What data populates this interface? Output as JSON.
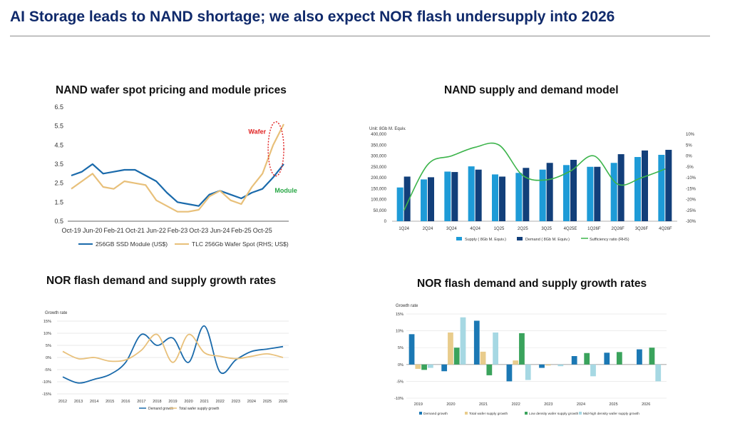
{
  "slide_title": "AI Storage leads to NAND shortage; we also expect NOR flash undersupply into 2026",
  "chart_data": [
    {
      "id": "nand_pricing",
      "type": "line",
      "title": "NAND wafer spot pricing and module prices",
      "ylim": [
        0.5,
        6.5
      ],
      "yticks": [
        "0.5",
        "1.5",
        "2.5",
        "3.5",
        "4.5",
        "5.5",
        "6.5"
      ],
      "xticks": [
        "Oct-19",
        "Jun-20",
        "Feb-21",
        "Oct-21",
        "Jun-22",
        "Feb-23",
        "Oct-23",
        "Jun-24",
        "Feb-25",
        "Oct-25"
      ],
      "x": [
        "Oct-19",
        "Feb-20",
        "Jun-20",
        "Oct-20",
        "Feb-21",
        "Jun-21",
        "Oct-21",
        "Feb-22",
        "Jun-22",
        "Oct-22",
        "Feb-23",
        "Jun-23",
        "Oct-23",
        "Feb-24",
        "Jun-24",
        "Oct-24",
        "Feb-25",
        "Jun-25",
        "Aug-25",
        "Oct-25",
        "Nov-25"
      ],
      "series": [
        {
          "name": "256GB SSD Module (US$)",
          "color": "#1a6aab",
          "values": [
            2.9,
            3.1,
            3.5,
            3.0,
            3.1,
            3.2,
            3.2,
            2.9,
            2.6,
            2.0,
            1.5,
            1.4,
            1.3,
            1.9,
            2.1,
            1.9,
            1.7,
            2.0,
            2.2,
            2.8,
            3.5
          ]
        },
        {
          "name": "TLC 256Gb Wafer Spot (RHS; US$)",
          "color": "#e8c07a",
          "values": [
            2.2,
            2.6,
            3.0,
            2.3,
            2.2,
            2.6,
            2.5,
            2.4,
            1.6,
            1.3,
            1.0,
            1.0,
            1.1,
            1.8,
            2.1,
            1.6,
            1.4,
            2.3,
            3.0,
            4.5,
            5.6
          ]
        }
      ],
      "annotations": [
        {
          "text": "Wafer",
          "color": "#e02020"
        },
        {
          "text": "Module",
          "color": "#28a745"
        }
      ]
    },
    {
      "id": "nand_supply_demand",
      "type": "bar",
      "title": "NAND supply and demand model",
      "unit_label": "Unit: 8Gb M. Equiv.",
      "ylim": [
        0,
        400000
      ],
      "yticks": [
        "0",
        "50,000",
        "100,000",
        "150,000",
        "200,000",
        "250,000",
        "300,000",
        "350,000",
        "400,000"
      ],
      "y2lim": [
        -30,
        10
      ],
      "y2ticks": [
        "10%",
        "5%",
        "0%",
        "-5%",
        "-10%",
        "-15%",
        "-20%",
        "-25%",
        "-30%"
      ],
      "categories": [
        "1Q24",
        "2Q24",
        "3Q24",
        "4Q24",
        "1Q25",
        "2Q25",
        "3Q25",
        "4Q25E",
        "1Q26F",
        "2Q26F",
        "3Q26F",
        "4Q26F"
      ],
      "series": [
        {
          "name": "Supply ( 8Gb M. Equiv.)",
          "color": "#1e9bd7",
          "values": [
            155000,
            192000,
            228000,
            252000,
            215000,
            222000,
            237000,
            258000,
            250000,
            268000,
            295000,
            305000
          ]
        },
        {
          "name": "Demand ( 8Gb M. Equiv.)",
          "color": "#123f7a",
          "values": [
            205000,
            202000,
            226000,
            237000,
            205000,
            245000,
            268000,
            282000,
            250000,
            308000,
            325000,
            328000
          ]
        },
        {
          "name": "Sufficiency ratio (RHS)",
          "color": "#3cb44b",
          "axis": "right",
          "values": [
            -25,
            -4,
            0,
            4,
            5,
            -9,
            -11,
            -7,
            0,
            -13,
            -10,
            -6
          ]
        }
      ]
    },
    {
      "id": "nor_growth_line",
      "type": "line",
      "title": "NOR flash demand and supply growth rates",
      "axis_title": "Growth rate",
      "ylim": [
        -15,
        15
      ],
      "yticks": [
        "15%",
        "10%",
        "5%",
        "0%",
        "-5%",
        "-10%",
        "-15%"
      ],
      "categories": [
        "2012",
        "2013",
        "2014",
        "2015",
        "2016",
        "2017",
        "2018",
        "2019",
        "2020",
        "2021",
        "2022",
        "2023",
        "2024",
        "2025",
        "2026"
      ],
      "series": [
        {
          "name": "Demand growth",
          "color": "#1a6aab",
          "values": [
            -8,
            -10.5,
            -9,
            -7,
            -2,
            9.5,
            5,
            8,
            -2,
            13,
            -6,
            -1,
            2.5,
            3.5,
            4.5
          ]
        },
        {
          "name": "Total wafer supply growth",
          "color": "#e8c07a",
          "values": [
            2.5,
            -0.5,
            0,
            -1.5,
            -1,
            3,
            9.5,
            -2,
            9.5,
            2,
            0.5,
            -0.5,
            0.5,
            1.5,
            0
          ]
        }
      ]
    },
    {
      "id": "nor_growth_bar",
      "type": "bar",
      "title": "NOR flash demand and supply growth rates",
      "axis_title": "Growth rate",
      "ylim": [
        -10,
        15
      ],
      "yticks": [
        "15%",
        "10%",
        "5%",
        "0%",
        "-5%",
        "-10%"
      ],
      "categories": [
        "2019",
        "2020",
        "2021",
        "2022",
        "2023",
        "2024",
        "2025",
        "2026"
      ],
      "series": [
        {
          "name": "Demand growth",
          "color": "#1b78b4",
          "values": [
            9,
            -2,
            13,
            -5,
            -1,
            2.5,
            3.5,
            4.5
          ]
        },
        {
          "name": "Total wafer supply growth",
          "color": "#e9cc8c",
          "values": [
            -1.3,
            9.5,
            3.8,
            1.2,
            -0.3,
            0,
            0,
            0
          ]
        },
        {
          "name": "Low density wafer supply growth",
          "color": "#3aa35c",
          "values": [
            -1.6,
            5,
            -3.2,
            9.3,
            0,
            3.4,
            3.7,
            5
          ]
        },
        {
          "name": "Mid-high density wafer supply growth",
          "color": "#a6d8e3",
          "values": [
            -1,
            14,
            9.5,
            -4.6,
            -0.5,
            -3.5,
            0,
            -5
          ]
        }
      ]
    }
  ]
}
